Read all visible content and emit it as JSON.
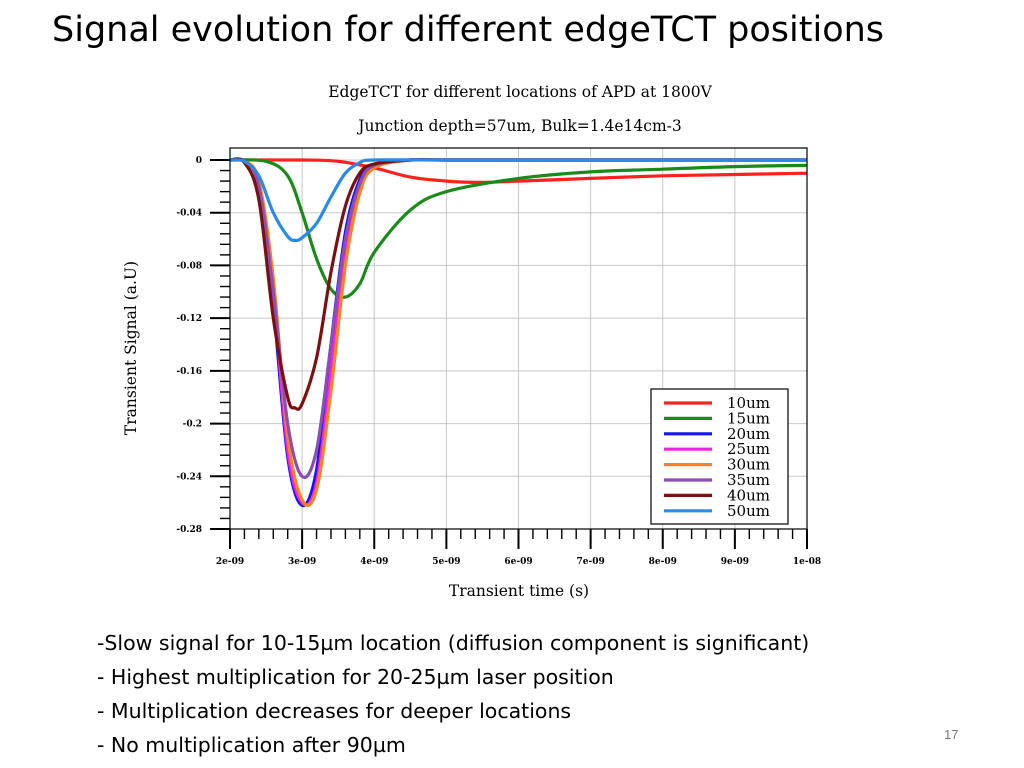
{
  "slide": {
    "title": "Signal evolution for different edgeTCT positions",
    "bullets": [
      "-Slow signal for 10-15µm location (diffusion component is significant)",
      "- Highest multiplication for 20-25µm laser position",
      "- Multiplication decreases for deeper locations",
      "- No multiplication after 90µm"
    ],
    "page_number": "17"
  },
  "chart_data": {
    "type": "line",
    "title": "EdgeTCT for different locations of APD at 1800V",
    "subtitle": "Junction depth=57um, Bulk=1.4e14cm-3",
    "xlabel": "Transient time (s)",
    "ylabel": "Transient Signal (a.U)",
    "xlim": [
      2e-09,
      1e-08
    ],
    "ylim": [
      -0.28,
      0.002
    ],
    "x_ticks": [
      2e-09,
      3e-09,
      4e-09,
      5e-09,
      6e-09,
      7e-09,
      8e-09,
      9e-09,
      1e-08
    ],
    "x_tick_labels": [
      "2e-09",
      "3e-09",
      "4e-09",
      "5e-09",
      "6e-09",
      "7e-09",
      "8e-09",
      "9e-09",
      "1e-08"
    ],
    "y_ticks": [
      0,
      -0.04,
      -0.08,
      -0.12,
      -0.16,
      -0.2,
      -0.24,
      -0.28
    ],
    "y_tick_labels": [
      "0",
      "-0.04",
      "-0.08",
      "-0.12",
      "-0.16",
      "-0.2",
      "-0.24",
      "-0.28"
    ],
    "grid": true,
    "legend_position": "bottom-right",
    "series": [
      {
        "name": "10um",
        "color": "#ff2020",
        "x": [
          2e-09,
          3e-09,
          3.5e-09,
          4e-09,
          4.5e-09,
          5e-09,
          5.5e-09,
          6e-09,
          7e-09,
          8e-09,
          9e-09,
          1e-08
        ],
        "y": [
          0,
          0,
          -0.001,
          -0.006,
          -0.013,
          -0.016,
          -0.017,
          -0.016,
          -0.014,
          -0.012,
          -0.011,
          -0.01
        ]
      },
      {
        "name": "15um",
        "color": "#1a8a1a",
        "x": [
          2e-09,
          2.5e-09,
          2.8e-09,
          3e-09,
          3.2e-09,
          3.4e-09,
          3.6e-09,
          3.8e-09,
          4e-09,
          4.5e-09,
          5e-09,
          6e-09,
          7e-09,
          8e-09,
          9e-09,
          1e-08
        ],
        "y": [
          0,
          -0.001,
          -0.012,
          -0.04,
          -0.075,
          -0.098,
          -0.104,
          -0.094,
          -0.07,
          -0.038,
          -0.024,
          -0.014,
          -0.009,
          -0.007,
          -0.005,
          -0.004
        ]
      },
      {
        "name": "20um",
        "color": "#1515ee",
        "x": [
          2e-09,
          2.2e-09,
          2.4e-09,
          2.6e-09,
          2.8e-09,
          3e-09,
          3.2e-09,
          3.4e-09,
          3.6e-09,
          3.8e-09,
          4e-09,
          4.5e-09,
          5e-09,
          6e-09,
          8e-09,
          1e-08
        ],
        "y": [
          0,
          -0.001,
          -0.02,
          -0.11,
          -0.225,
          -0.262,
          -0.235,
          -0.14,
          -0.055,
          -0.015,
          -0.004,
          0,
          0,
          0,
          0,
          0
        ]
      },
      {
        "name": "25um",
        "color": "#ee22ee",
        "x": [
          2e-09,
          2.2e-09,
          2.4e-09,
          2.6e-09,
          2.8e-09,
          3e-09,
          3.2e-09,
          3.4e-09,
          3.6e-09,
          3.8e-09,
          4e-09,
          4.5e-09,
          5e-09,
          6e-09,
          8e-09,
          1e-08
        ],
        "y": [
          0,
          -0.001,
          -0.018,
          -0.1,
          -0.22,
          -0.26,
          -0.245,
          -0.16,
          -0.07,
          -0.02,
          -0.005,
          0,
          0,
          0,
          0,
          0
        ]
      },
      {
        "name": "30um",
        "color": "#ff8020",
        "x": [
          2e-09,
          2.2e-09,
          2.4e-09,
          2.6e-09,
          2.8e-09,
          3e-09,
          3.2e-09,
          3.4e-09,
          3.6e-09,
          3.8e-09,
          4e-09,
          4.5e-09,
          5e-09,
          6e-09,
          8e-09,
          1e-08
        ],
        "y": [
          0,
          -0.001,
          -0.016,
          -0.09,
          -0.21,
          -0.258,
          -0.25,
          -0.175,
          -0.08,
          -0.025,
          -0.006,
          0,
          0,
          0,
          0,
          0
        ]
      },
      {
        "name": "35um",
        "color": "#8a4fb0",
        "x": [
          2e-09,
          2.2e-09,
          2.4e-09,
          2.6e-09,
          2.8e-09,
          3e-09,
          3.2e-09,
          3.4e-09,
          3.6e-09,
          3.8e-09,
          4e-09,
          4.5e-09,
          5e-09,
          6e-09,
          8e-09,
          1e-08
        ],
        "y": [
          0,
          -0.001,
          -0.02,
          -0.1,
          -0.2,
          -0.24,
          -0.22,
          -0.14,
          -0.06,
          -0.018,
          -0.004,
          0,
          0,
          0,
          0,
          0
        ]
      },
      {
        "name": "40um",
        "color": "#7a1010",
        "x": [
          2e-09,
          2.2e-09,
          2.4e-09,
          2.6e-09,
          2.8e-09,
          2.9e-09,
          3e-09,
          3.2e-09,
          3.4e-09,
          3.6e-09,
          3.8e-09,
          4e-09,
          4.5e-09,
          5e-09,
          6e-09,
          8e-09,
          1e-08
        ],
        "y": [
          0,
          -0.002,
          -0.03,
          -0.12,
          -0.18,
          -0.188,
          -0.185,
          -0.15,
          -0.085,
          -0.035,
          -0.01,
          -0.003,
          0,
          0,
          0,
          0,
          0
        ]
      },
      {
        "name": "50um",
        "color": "#2a8ae8",
        "x": [
          2e-09,
          2.2e-09,
          2.4e-09,
          2.6e-09,
          2.8e-09,
          2.9e-09,
          3e-09,
          3.2e-09,
          3.4e-09,
          3.6e-09,
          3.8e-09,
          4e-09,
          5e-09,
          6e-09,
          8e-09,
          1e-08
        ],
        "y": [
          0,
          -0.001,
          -0.012,
          -0.04,
          -0.058,
          -0.061,
          -0.059,
          -0.048,
          -0.028,
          -0.01,
          -0.002,
          0,
          0,
          0,
          0,
          0
        ]
      }
    ]
  }
}
